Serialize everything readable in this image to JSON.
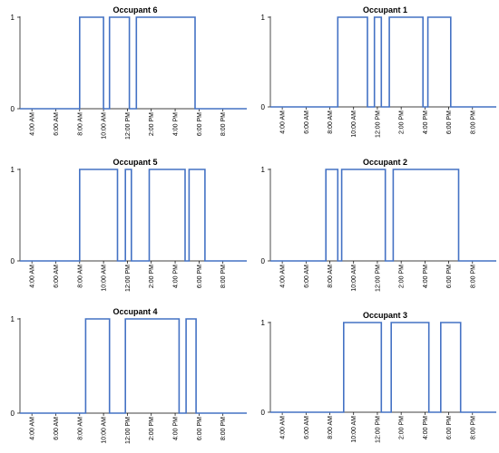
{
  "colors": {
    "series": "#4472c4",
    "axis": "#000000",
    "background": "#ffffff"
  },
  "chart_data": [
    {
      "type": "line",
      "title": "Occupant 6",
      "yticks": [
        0,
        1
      ],
      "ylim": [
        0,
        1
      ],
      "xticks": [
        "4:00 AM",
        "6:00 AM",
        "8:00 AM",
        "10:00 AM",
        "12:00 PM",
        "2:00 PM",
        "4:00 PM",
        "6:00 PM",
        "8:00 PM"
      ],
      "xlim": [
        "3:00 AM",
        "10:00 PM"
      ],
      "series": [
        {
          "style": "step",
          "x": [
            "3:00 AM",
            "8:00 AM",
            "10:00 AM",
            "10:30 AM",
            "12:10 PM",
            "12:45 PM",
            "5:40 PM",
            "10:00 PM"
          ],
          "y": [
            0,
            1,
            0,
            1,
            0,
            1,
            0,
            0
          ]
        }
      ]
    },
    {
      "type": "line",
      "title": "Occupant 1",
      "yticks": [
        0,
        1
      ],
      "ylim": [
        0,
        1
      ],
      "xticks": [
        "4:00 AM",
        "6:00 AM",
        "8:00 AM",
        "10:00 AM",
        "12:00 PM",
        "2:00 PM",
        "4:00 PM",
        "6:00 PM",
        "8:00 PM"
      ],
      "xlim": [
        "3:00 AM",
        "10:00 PM"
      ],
      "series": [
        {
          "style": "step",
          "x": [
            "3:00 AM",
            "8:40 AM",
            "11:10 AM",
            "11:45 AM",
            "12:20 PM",
            "1:00 PM",
            "3:50 PM",
            "4:15 PM",
            "6:10 PM",
            "10:00 PM"
          ],
          "y": [
            0,
            1,
            0,
            1,
            0,
            1,
            0,
            1,
            0,
            0
          ]
        }
      ]
    },
    {
      "type": "line",
      "title": "Occupant 5",
      "yticks": [
        0,
        1
      ],
      "ylim": [
        0,
        1
      ],
      "xticks": [
        "4:00 AM",
        "6:00 AM",
        "8:00 AM",
        "10:00 AM",
        "12:00 PM",
        "2:00 PM",
        "4:00 PM",
        "6:00 PM",
        "8:00 PM"
      ],
      "xlim": [
        "3:00 AM",
        "10:00 PM"
      ],
      "series": [
        {
          "style": "step",
          "x": [
            "3:00 AM",
            "8:00 AM",
            "11:10 AM",
            "11:50 AM",
            "12:20 PM",
            "1:50 PM",
            "4:50 PM",
            "5:10 PM",
            "6:30 PM",
            "10:00 PM"
          ],
          "y": [
            0,
            1,
            0,
            1,
            0,
            1,
            0,
            1,
            0,
            0
          ]
        }
      ]
    },
    {
      "type": "line",
      "title": "Occupant 2",
      "yticks": [
        0,
        1
      ],
      "ylim": [
        0,
        1
      ],
      "xticks": [
        "4:00 AM",
        "6:00 AM",
        "8:00 AM",
        "10:00 AM",
        "12:00 PM",
        "2:00 PM",
        "4:00 PM",
        "6:00 PM",
        "8:00 PM"
      ],
      "xlim": [
        "3:00 AM",
        "10:00 PM"
      ],
      "series": [
        {
          "style": "step",
          "x": [
            "3:00 AM",
            "7:40 AM",
            "8:40 AM",
            "9:00 AM",
            "12:40 PM",
            "1:20 PM",
            "6:50 PM",
            "10:00 PM"
          ],
          "y": [
            0,
            1,
            0,
            1,
            0,
            1,
            0,
            0
          ]
        }
      ]
    },
    {
      "type": "line",
      "title": "Occupant 4",
      "yticks": [
        0,
        1
      ],
      "ylim": [
        0,
        1
      ],
      "xticks": [
        "4:00 AM",
        "6:00 AM",
        "8:00 AM",
        "10:00 AM",
        "12:00 PM",
        "2:00 PM",
        "4:00 PM",
        "6:00 PM",
        "8:00 PM"
      ],
      "xlim": [
        "3:00 AM",
        "10:00 PM"
      ],
      "series": [
        {
          "style": "step",
          "x": [
            "3:00 AM",
            "8:30 AM",
            "10:30 AM",
            "11:50 AM",
            "4:20 PM",
            "4:55 PM",
            "5:45 PM",
            "10:00 PM"
          ],
          "y": [
            0,
            1,
            0,
            1,
            0,
            1,
            0,
            0
          ]
        }
      ]
    },
    {
      "type": "line",
      "title": "Occupant 3",
      "yticks": [
        0,
        1
      ],
      "ylim": [
        0,
        1
      ],
      "xticks": [
        "4:00 AM",
        "6:00 AM",
        "8:00 AM",
        "10:00 AM",
        "12:00 PM",
        "2:00 PM",
        "4:00 PM",
        "6:00 PM",
        "8:00 PM"
      ],
      "xlim": [
        "3:00 AM",
        "10:00 PM"
      ],
      "series": [
        {
          "style": "step",
          "x": [
            "3:00 AM",
            "9:10 AM",
            "12:20 PM",
            "1:10 PM",
            "4:20 PM",
            "5:20 PM",
            "7:00 PM",
            "10:00 PM"
          ],
          "y": [
            0,
            1,
            0,
            1,
            0,
            1,
            0,
            0
          ]
        }
      ]
    }
  ]
}
